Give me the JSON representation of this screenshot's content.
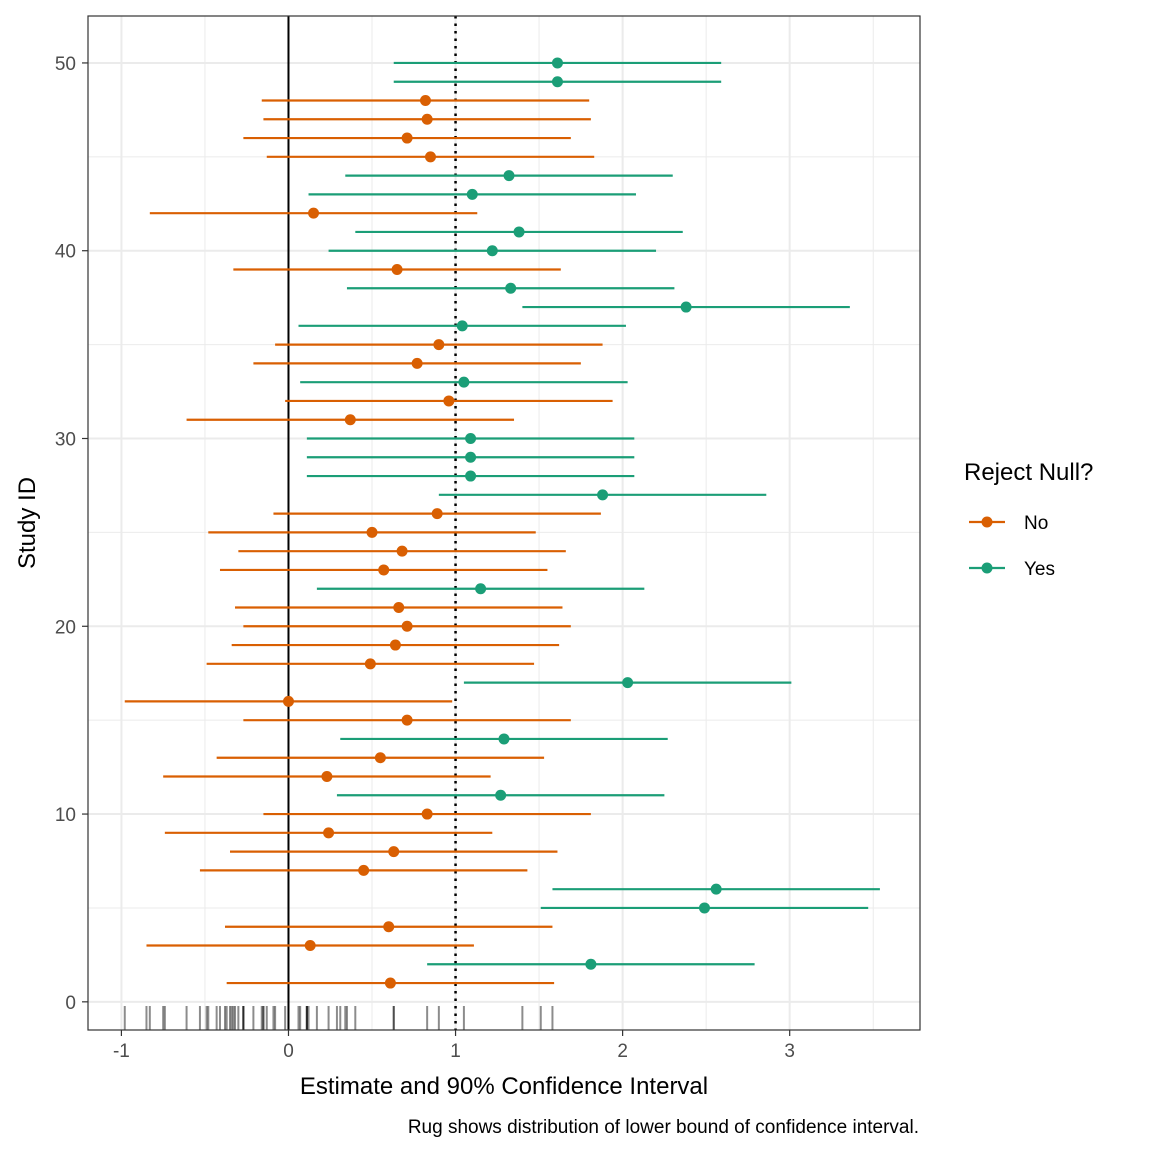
{
  "chart_data": {
    "type": "forest-plot",
    "xlabel": "Estimate and 90% Confidence Interval",
    "ylabel": "Study ID",
    "caption": "Rug shows distribution of lower bound of confidence interval.",
    "xlim": [
      -1.2,
      3.78
    ],
    "ylim": [
      -1.5,
      52.5
    ],
    "x_ticks": [
      -1,
      0,
      1,
      2,
      3
    ],
    "x_tick_labels": [
      "-1",
      "0",
      "1",
      "2",
      "3"
    ],
    "y_ticks": [
      0,
      10,
      20,
      30,
      40,
      50
    ],
    "y_tick_labels": [
      "0",
      "10",
      "20",
      "30",
      "40",
      "50"
    ],
    "reference_lines": [
      {
        "x": 0,
        "style": "solid"
      },
      {
        "x": 1,
        "style": "dotted"
      }
    ],
    "grid": true,
    "legend": {
      "title": "Reject Null?",
      "placement": "right",
      "entries": [
        {
          "label": "No",
          "color": "#d95f02"
        },
        {
          "label": "Yes",
          "color": "#1b9e77"
        }
      ]
    },
    "series": [
      {
        "name": "No",
        "color": "#d95f02",
        "points": [
          {
            "study": 1,
            "est": 0.61,
            "lo": -0.37,
            "hi": 1.59
          },
          {
            "study": 3,
            "est": 0.13,
            "lo": -0.85,
            "hi": 1.11
          },
          {
            "study": 4,
            "est": 0.6,
            "lo": -0.38,
            "hi": 1.58
          },
          {
            "study": 7,
            "est": 0.45,
            "lo": -0.53,
            "hi": 1.43
          },
          {
            "study": 8,
            "est": 0.63,
            "lo": -0.35,
            "hi": 1.61
          },
          {
            "study": 9,
            "est": 0.24,
            "lo": -0.74,
            "hi": 1.22
          },
          {
            "study": 10,
            "est": 0.83,
            "lo": -0.15,
            "hi": 1.81
          },
          {
            "study": 12,
            "est": 0.23,
            "lo": -0.75,
            "hi": 1.21
          },
          {
            "study": 13,
            "est": 0.55,
            "lo": -0.43,
            "hi": 1.53
          },
          {
            "study": 15,
            "est": 0.71,
            "lo": -0.27,
            "hi": 1.69
          },
          {
            "study": 16,
            "est": 0.0,
            "lo": -0.98,
            "hi": 0.98
          },
          {
            "study": 18,
            "est": 0.49,
            "lo": -0.49,
            "hi": 1.47
          },
          {
            "study": 19,
            "est": 0.64,
            "lo": -0.34,
            "hi": 1.62
          },
          {
            "study": 20,
            "est": 0.71,
            "lo": -0.27,
            "hi": 1.69
          },
          {
            "study": 21,
            "est": 0.66,
            "lo": -0.32,
            "hi": 1.64
          },
          {
            "study": 23,
            "est": 0.57,
            "lo": -0.41,
            "hi": 1.55
          },
          {
            "study": 24,
            "est": 0.68,
            "lo": -0.3,
            "hi": 1.66
          },
          {
            "study": 25,
            "est": 0.5,
            "lo": -0.48,
            "hi": 1.48
          },
          {
            "study": 26,
            "est": 0.89,
            "lo": -0.09,
            "hi": 1.87
          },
          {
            "study": 31,
            "est": 0.37,
            "lo": -0.61,
            "hi": 1.35
          },
          {
            "study": 32,
            "est": 0.96,
            "lo": -0.02,
            "hi": 1.94
          },
          {
            "study": 34,
            "est": 0.77,
            "lo": -0.21,
            "hi": 1.75
          },
          {
            "study": 35,
            "est": 0.9,
            "lo": -0.08,
            "hi": 1.88
          },
          {
            "study": 39,
            "est": 0.65,
            "lo": -0.33,
            "hi": 1.63
          },
          {
            "study": 42,
            "est": 0.15,
            "lo": -0.83,
            "hi": 1.13
          },
          {
            "study": 45,
            "est": 0.85,
            "lo": -0.13,
            "hi": 1.83
          },
          {
            "study": 46,
            "est": 0.71,
            "lo": -0.27,
            "hi": 1.69
          },
          {
            "study": 47,
            "est": 0.83,
            "lo": -0.15,
            "hi": 1.81
          },
          {
            "study": 48,
            "est": 0.82,
            "lo": -0.16,
            "hi": 1.8
          }
        ]
      },
      {
        "name": "Yes",
        "color": "#1b9e77",
        "points": [
          {
            "study": 2,
            "est": 1.81,
            "lo": 0.83,
            "hi": 2.79
          },
          {
            "study": 5,
            "est": 2.49,
            "lo": 1.51,
            "hi": 3.47
          },
          {
            "study": 6,
            "est": 2.56,
            "lo": 1.58,
            "hi": 3.54
          },
          {
            "study": 11,
            "est": 1.27,
            "lo": 0.29,
            "hi": 2.25
          },
          {
            "study": 14,
            "est": 1.29,
            "lo": 0.31,
            "hi": 2.27
          },
          {
            "study": 17,
            "est": 2.03,
            "lo": 1.05,
            "hi": 3.01
          },
          {
            "study": 22,
            "est": 1.15,
            "lo": 0.17,
            "hi": 2.13
          },
          {
            "study": 27,
            "est": 1.88,
            "lo": 0.9,
            "hi": 2.86
          },
          {
            "study": 28,
            "est": 1.09,
            "lo": 0.11,
            "hi": 2.07
          },
          {
            "study": 29,
            "est": 1.09,
            "lo": 0.11,
            "hi": 2.07
          },
          {
            "study": 30,
            "est": 1.09,
            "lo": 0.11,
            "hi": 2.07
          },
          {
            "study": 33,
            "est": 1.05,
            "lo": 0.07,
            "hi": 2.03
          },
          {
            "study": 36,
            "est": 1.04,
            "lo": 0.06,
            "hi": 2.02
          },
          {
            "study": 37,
            "est": 2.38,
            "lo": 1.4,
            "hi": 3.36
          },
          {
            "study": 38,
            "est": 1.33,
            "lo": 0.35,
            "hi": 2.31
          },
          {
            "study": 40,
            "est": 1.22,
            "lo": 0.24,
            "hi": 2.2
          },
          {
            "study": 41,
            "est": 1.38,
            "lo": 0.4,
            "hi": 2.36
          },
          {
            "study": 43,
            "est": 1.1,
            "lo": 0.12,
            "hi": 2.08
          },
          {
            "study": 44,
            "est": 1.32,
            "lo": 0.34,
            "hi": 2.3
          },
          {
            "study": 49,
            "est": 1.61,
            "lo": 0.63,
            "hi": 2.59
          },
          {
            "study": 50,
            "est": 1.61,
            "lo": 0.63,
            "hi": 2.59
          }
        ]
      }
    ],
    "rug": {
      "variable": "lower bound of confidence interval",
      "color": "#000000",
      "opacity": 0.45
    }
  }
}
